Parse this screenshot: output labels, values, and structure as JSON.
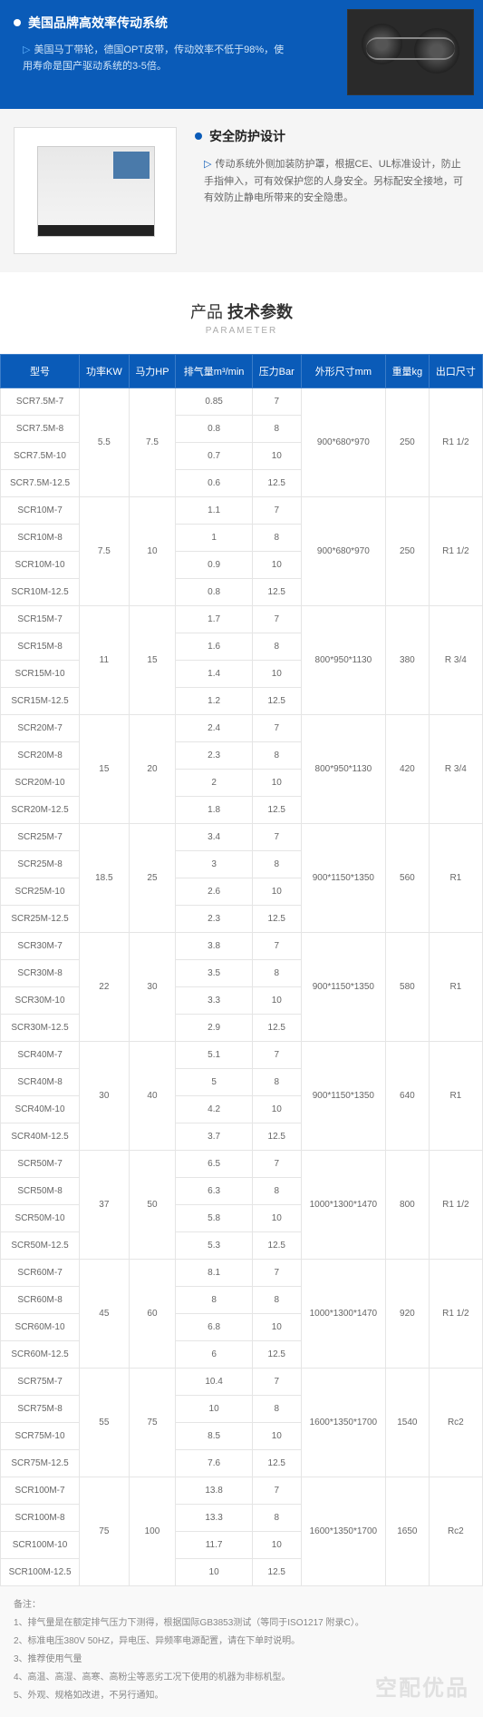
{
  "section1": {
    "title": "美国品牌高效率传动系统",
    "desc": "美国马丁带轮，德国OPT皮带，传动效率不低于98%，使用寿命是国产驱动系统的3-5倍。"
  },
  "section2": {
    "title": "安全防护设计",
    "desc": "传动系统外侧加装防护罩，根据CE、UL标准设计，防止手指伸入，可有效保护您的人身安全。另标配安全接地，可有效防止静电所带来的安全隐患。"
  },
  "params_title": {
    "light": "产品 ",
    "bold": "技术参数",
    "sub": "PARAMETER"
  },
  "headers": [
    "型号",
    "功率KW",
    "马力HP",
    "排气量m³/min",
    "压力Bar",
    "外形尺寸mm",
    "重量kg",
    "出口尺寸"
  ],
  "groups": [
    {
      "kw": "5.5",
      "hp": "7.5",
      "dim": "900*680*970",
      "wt": "250",
      "port": "R1 1/2",
      "rows": [
        {
          "model": "SCR7.5M-7",
          "air": "0.85",
          "bar": "7"
        },
        {
          "model": "SCR7.5M-8",
          "air": "0.8",
          "bar": "8"
        },
        {
          "model": "SCR7.5M-10",
          "air": "0.7",
          "bar": "10"
        },
        {
          "model": "SCR7.5M-12.5",
          "air": "0.6",
          "bar": "12.5"
        }
      ]
    },
    {
      "kw": "7.5",
      "hp": "10",
      "dim": "900*680*970",
      "wt": "250",
      "port": "R1 1/2",
      "rows": [
        {
          "model": "SCR10M-7",
          "air": "1.1",
          "bar": "7"
        },
        {
          "model": "SCR10M-8",
          "air": "1",
          "bar": "8"
        },
        {
          "model": "SCR10M-10",
          "air": "0.9",
          "bar": "10"
        },
        {
          "model": "SCR10M-12.5",
          "air": "0.8",
          "bar": "12.5"
        }
      ]
    },
    {
      "kw": "11",
      "hp": "15",
      "dim": "800*950*1130",
      "wt": "380",
      "port": "R 3/4",
      "rows": [
        {
          "model": "SCR15M-7",
          "air": "1.7",
          "bar": "7"
        },
        {
          "model": "SCR15M-8",
          "air": "1.6",
          "bar": "8"
        },
        {
          "model": "SCR15M-10",
          "air": "1.4",
          "bar": "10"
        },
        {
          "model": "SCR15M-12.5",
          "air": "1.2",
          "bar": "12.5"
        }
      ]
    },
    {
      "kw": "15",
      "hp": "20",
      "dim": "800*950*1130",
      "wt": "420",
      "port": "R 3/4",
      "rows": [
        {
          "model": "SCR20M-7",
          "air": "2.4",
          "bar": "7"
        },
        {
          "model": "SCR20M-8",
          "air": "2.3",
          "bar": "8"
        },
        {
          "model": "SCR20M-10",
          "air": "2",
          "bar": "10"
        },
        {
          "model": "SCR20M-12.5",
          "air": "1.8",
          "bar": "12.5"
        }
      ]
    },
    {
      "kw": "18.5",
      "hp": "25",
      "dim": "900*1150*1350",
      "wt": "560",
      "port": "R1",
      "rows": [
        {
          "model": "SCR25M-7",
          "air": "3.4",
          "bar": "7"
        },
        {
          "model": "SCR25M-8",
          "air": "3",
          "bar": "8"
        },
        {
          "model": "SCR25M-10",
          "air": "2.6",
          "bar": "10"
        },
        {
          "model": "SCR25M-12.5",
          "air": "2.3",
          "bar": "12.5"
        }
      ]
    },
    {
      "kw": "22",
      "hp": "30",
      "dim": "900*1150*1350",
      "wt": "580",
      "port": "R1",
      "rows": [
        {
          "model": "SCR30M-7",
          "air": "3.8",
          "bar": "7"
        },
        {
          "model": "SCR30M-8",
          "air": "3.5",
          "bar": "8"
        },
        {
          "model": "SCR30M-10",
          "air": "3.3",
          "bar": "10"
        },
        {
          "model": "SCR30M-12.5",
          "air": "2.9",
          "bar": "12.5"
        }
      ]
    },
    {
      "kw": "30",
      "hp": "40",
      "dim": "900*1150*1350",
      "wt": "640",
      "port": "R1",
      "rows": [
        {
          "model": "SCR40M-7",
          "air": "5.1",
          "bar": "7"
        },
        {
          "model": "SCR40M-8",
          "air": "5",
          "bar": "8"
        },
        {
          "model": "SCR40M-10",
          "air": "4.2",
          "bar": "10"
        },
        {
          "model": "SCR40M-12.5",
          "air": "3.7",
          "bar": "12.5"
        }
      ]
    },
    {
      "kw": "37",
      "hp": "50",
      "dim": "1000*1300*1470",
      "wt": "800",
      "port": "R1 1/2",
      "rows": [
        {
          "model": "SCR50M-7",
          "air": "6.5",
          "bar": "7"
        },
        {
          "model": "SCR50M-8",
          "air": "6.3",
          "bar": "8"
        },
        {
          "model": "SCR50M-10",
          "air": "5.8",
          "bar": "10"
        },
        {
          "model": "SCR50M-12.5",
          "air": "5.3",
          "bar": "12.5"
        }
      ]
    },
    {
      "kw": "45",
      "hp": "60",
      "dim": "1000*1300*1470",
      "wt": "920",
      "port": "R1 1/2",
      "rows": [
        {
          "model": "SCR60M-7",
          "air": "8.1",
          "bar": "7"
        },
        {
          "model": "SCR60M-8",
          "air": "8",
          "bar": "8"
        },
        {
          "model": "SCR60M-10",
          "air": "6.8",
          "bar": "10"
        },
        {
          "model": "SCR60M-12.5",
          "air": "6",
          "bar": "12.5"
        }
      ]
    },
    {
      "kw": "55",
      "hp": "75",
      "dim": "1600*1350*1700",
      "wt": "1540",
      "port": "Rc2",
      "rows": [
        {
          "model": "SCR75M-7",
          "air": "10.4",
          "bar": "7"
        },
        {
          "model": "SCR75M-8",
          "air": "10",
          "bar": "8"
        },
        {
          "model": "SCR75M-10",
          "air": "8.5",
          "bar": "10"
        },
        {
          "model": "SCR75M-12.5",
          "air": "7.6",
          "bar": "12.5"
        }
      ]
    },
    {
      "kw": "75",
      "hp": "100",
      "dim": "1600*1350*1700",
      "wt": "1650",
      "port": "Rc2",
      "rows": [
        {
          "model": "SCR100M-7",
          "air": "13.8",
          "bar": "7"
        },
        {
          "model": "SCR100M-8",
          "air": "13.3",
          "bar": "8"
        },
        {
          "model": "SCR100M-10",
          "air": "11.7",
          "bar": "10"
        },
        {
          "model": "SCR100M-12.5",
          "air": "10",
          "bar": "12.5"
        }
      ]
    }
  ],
  "notes_title": "备注：",
  "notes": [
    "1、排气量是在额定排气压力下测得，根据国际GB3853测试（等同于ISO1217  附录C）。",
    "2、标准电压380V 50HZ，异电压、异频率电源配置，请在下单时说明。",
    "3、推荐使用气量",
    "4、高温、高湿、高寒、高粉尘等恶劣工况下使用的机器为非标机型。",
    "5、外观、规格如改进，不另行通知。"
  ],
  "watermark": "空配优品"
}
